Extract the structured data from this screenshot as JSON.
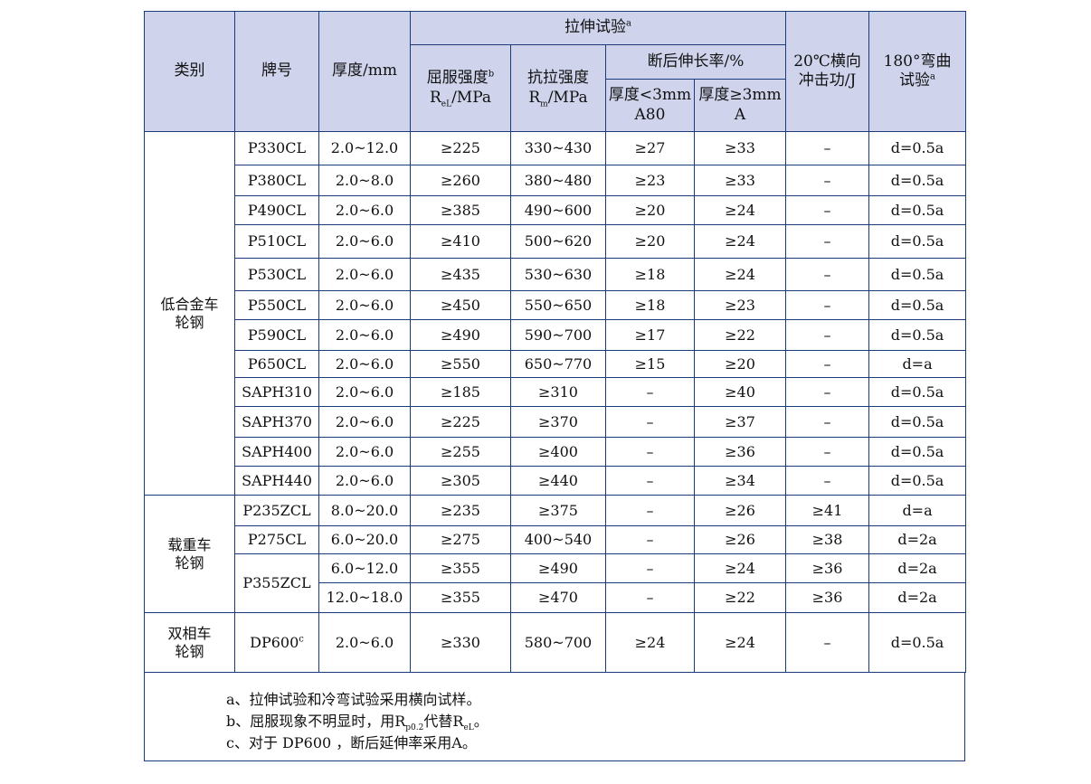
{
  "header": {
    "category": "类别",
    "grade": "牌号",
    "thickness": "厚度/mm",
    "tensile_group": "拉伸试验",
    "tensile_group_sup": "a",
    "yield_line1": "屈服强度",
    "yield_sup": "b",
    "yield_sym": "R",
    "yield_sub": "eL",
    "yield_unit": "/MPa",
    "tensile_line1": "抗拉强度",
    "tensile_sym": "R",
    "tensile_sub": "m",
    "tensile_unit": "/MPa",
    "elong_group": "断后伸长率/%",
    "elong_a80_line1": "厚度<3mm",
    "elong_a80_line2": "A80",
    "elong_a_line1": "厚度≥3mm",
    "elong_a_line2": "A",
    "impact_line1": "20℃横向",
    "impact_line2": "冲击功/J",
    "bend_line1": "180°弯曲",
    "bend_line2": "试验",
    "bend_sup": "a"
  },
  "groups": {
    "low_alloy_line1": "低合金车",
    "low_alloy_line2": "轮钢",
    "heavy_line1": "载重车",
    "heavy_line2": "轮钢",
    "dual_line1": "双相车",
    "dual_line2": "轮钢"
  },
  "rows": [
    {
      "grade": "P330CL",
      "thickness": "2.0~12.0",
      "yield": "≥225",
      "tensile": "330~430",
      "a80": "≥27",
      "a": "≥33",
      "impact": "–",
      "bend": "d=0.5a"
    },
    {
      "grade": "P380CL",
      "thickness": "2.0~8.0",
      "yield": "≥260",
      "tensile": "380~480",
      "a80": "≥23",
      "a": "≥33",
      "impact": "–",
      "bend": "d=0.5a"
    },
    {
      "grade": "P490CL",
      "thickness": "2.0~6.0",
      "yield": "≥385",
      "tensile": "490~600",
      "a80": "≥20",
      "a": "≥24",
      "impact": "–",
      "bend": "d=0.5a"
    },
    {
      "grade": "P510CL",
      "thickness": "2.0~6.0",
      "yield": "≥410",
      "tensile": "500~620",
      "a80": "≥20",
      "a": "≥24",
      "impact": "–",
      "bend": "d=0.5a"
    },
    {
      "grade": "P530CL",
      "thickness": "2.0~6.0",
      "yield": "≥435",
      "tensile": "530~630",
      "a80": "≥18",
      "a": "≥24",
      "impact": "–",
      "bend": "d=0.5a"
    },
    {
      "grade": "P550CL",
      "thickness": "2.0~6.0",
      "yield": "≥450",
      "tensile": "550~650",
      "a80": "≥18",
      "a": "≥23",
      "impact": "–",
      "bend": "d=0.5a"
    },
    {
      "grade": "P590CL",
      "thickness": "2.0~6.0",
      "yield": "≥490",
      "tensile": "590~700",
      "a80": "≥17",
      "a": "≥22",
      "impact": "–",
      "bend": "d=0.5a"
    },
    {
      "grade": "P650CL",
      "thickness": "2.0~6.0",
      "yield": "≥550",
      "tensile": "650~770",
      "a80": "≥15",
      "a": "≥20",
      "impact": "–",
      "bend": "d=a"
    },
    {
      "grade": "SAPH310",
      "thickness": "2.0~6.0",
      "yield": "≥185",
      "tensile": "≥310",
      "a80": "–",
      "a": "≥40",
      "impact": "–",
      "bend": "d=0.5a"
    },
    {
      "grade": "SAPH370",
      "thickness": "2.0~6.0",
      "yield": "≥225",
      "tensile": "≥370",
      "a80": "–",
      "a": "≥37",
      "impact": "–",
      "bend": "d=0.5a"
    },
    {
      "grade": "SAPH400",
      "thickness": "2.0~6.0",
      "yield": "≥255",
      "tensile": "≥400",
      "a80": "–",
      "a": "≥36",
      "impact": "–",
      "bend": "d=0.5a"
    },
    {
      "grade": "SAPH440",
      "thickness": "2.0~6.0",
      "yield": "≥305",
      "tensile": "≥440",
      "a80": "–",
      "a": "≥34",
      "impact": "–",
      "bend": "d=0.5a"
    },
    {
      "grade": "P235ZCL",
      "thickness": "8.0~20.0",
      "yield": "≥235",
      "tensile": "≥375",
      "a80": "–",
      "a": "≥26",
      "impact": "≥41",
      "bend": "d=a"
    },
    {
      "grade": "P275CL",
      "thickness": "6.0~20.0",
      "yield": "≥275",
      "tensile": "400~540",
      "a80": "–",
      "a": "≥26",
      "impact": "≥38",
      "bend": "d=2a"
    },
    {
      "grade": "P355ZCL",
      "thickness": "6.0~12.0",
      "yield": "≥355",
      "tensile": "≥490",
      "a80": "–",
      "a": "≥24",
      "impact": "≥36",
      "bend": "d=2a"
    },
    {
      "grade": "",
      "thickness": "12.0~18.0",
      "yield": "≥355",
      "tensile": "≥470",
      "a80": "–",
      "a": "≥22",
      "impact": "≥36",
      "bend": "d=2a"
    },
    {
      "grade": "DP600",
      "grade_sup": "c",
      "thickness": "2.0~6.0",
      "yield": "≥330",
      "tensile": "580~700",
      "a80": "≥24",
      "a": "≥24",
      "impact": "–",
      "bend": "d=0.5a"
    }
  ],
  "notes": {
    "a": "a、拉伸试验和冷弯试验采用横向试样。",
    "b_pre": "b、屈服现象不明显时，用R",
    "b_sub1": "p0.2",
    "b_mid": "代替R",
    "b_sub2": "eL",
    "b_end": "。",
    "c": "c、对于 DP600 ，断后延伸率采用A。"
  }
}
